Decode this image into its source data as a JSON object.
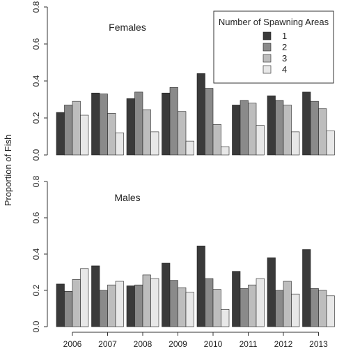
{
  "chart_data": [
    {
      "type": "bar",
      "panel_label": "Females",
      "categories": [
        "2006",
        "2007",
        "2008",
        "2009",
        "2010",
        "2011",
        "2012",
        "2013"
      ],
      "ylabel": "Proportion of Fish",
      "ylim": [
        0,
        0.8
      ],
      "yticks": [
        "0.0",
        "0.2",
        "0.4",
        "0.6",
        "0.8"
      ],
      "series": [
        {
          "name": "1",
          "color": "#3a3a3a",
          "values": [
            0.23,
            0.335,
            0.305,
            0.335,
            0.44,
            0.27,
            0.32,
            0.34
          ]
        },
        {
          "name": "2",
          "color": "#8a8a8a",
          "values": [
            0.27,
            0.33,
            0.34,
            0.365,
            0.36,
            0.295,
            0.295,
            0.29
          ]
        },
        {
          "name": "3",
          "color": "#bdbdbd",
          "values": [
            0.29,
            0.225,
            0.245,
            0.235,
            0.165,
            0.28,
            0.27,
            0.25
          ]
        },
        {
          "name": "4",
          "color": "#e8e8e8",
          "values": [
            0.215,
            0.12,
            0.125,
            0.075,
            0.045,
            0.16,
            0.125,
            0.13
          ]
        }
      ],
      "legend": {
        "title": "Number of Spawning Areas",
        "placement": "top-right"
      }
    },
    {
      "type": "bar",
      "panel_label": "Males",
      "categories": [
        "2006",
        "2007",
        "2008",
        "2009",
        "2010",
        "2011",
        "2012",
        "2013"
      ],
      "ylim": [
        0,
        0.8
      ],
      "yticks": [
        "0.0",
        "0.2",
        "0.4",
        "0.6",
        "0.8"
      ],
      "series": [
        {
          "name": "1",
          "color": "#3a3a3a",
          "values": [
            0.235,
            0.335,
            0.225,
            0.35,
            0.445,
            0.305,
            0.38,
            0.425
          ]
        },
        {
          "name": "2",
          "color": "#8a8a8a",
          "values": [
            0.195,
            0.2,
            0.23,
            0.255,
            0.265,
            0.21,
            0.2,
            0.21
          ]
        },
        {
          "name": "3",
          "color": "#bdbdbd",
          "values": [
            0.26,
            0.23,
            0.285,
            0.215,
            0.205,
            0.23,
            0.25,
            0.2
          ]
        },
        {
          "name": "4",
          "color": "#e8e8e8",
          "values": [
            0.32,
            0.25,
            0.265,
            0.19,
            0.095,
            0.265,
            0.18,
            0.17
          ]
        }
      ]
    }
  ]
}
